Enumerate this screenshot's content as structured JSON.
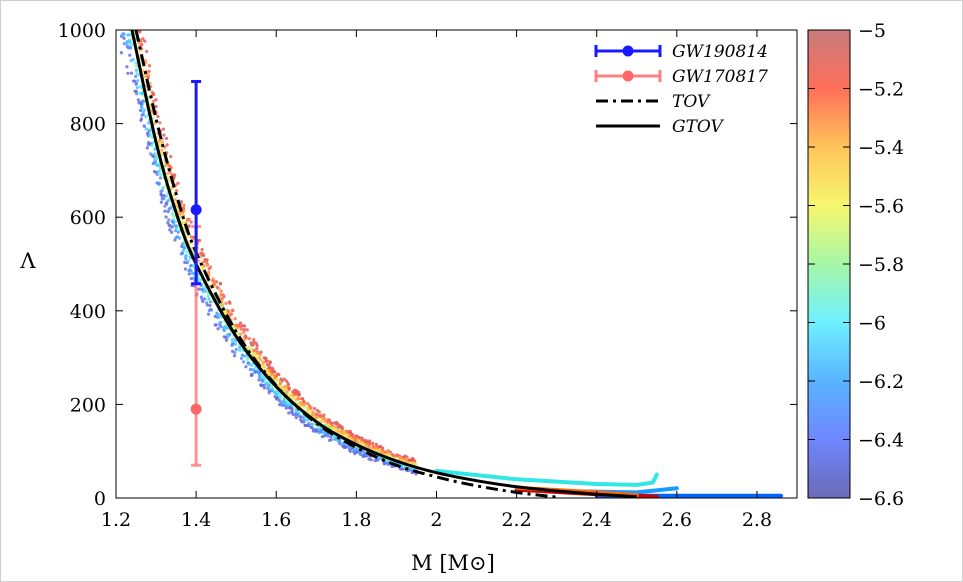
{
  "chart_data": {
    "type": "scatter",
    "xlabel": "M [M⊙]",
    "ylabel": "Λ",
    "xlim": [
      1.2,
      2.9
    ],
    "ylim": [
      0,
      1000
    ],
    "xticks": [
      "1.2",
      "1.4",
      "1.6",
      "1.8",
      "2",
      "2.2",
      "2.4",
      "2.6",
      "2.8"
    ],
    "yticks": [
      "0",
      "200",
      "400",
      "600",
      "800",
      "1000"
    ],
    "colorbar": {
      "min": -6.6,
      "max": -5,
      "ticks": [
        "−5",
        "−5.2",
        "−5.4",
        "−5.6",
        "−5.8",
        "−6",
        "−6.2",
        "−6.4",
        "−6.6"
      ]
    },
    "legend": [
      {
        "label": "GW190814",
        "style": "errorbar",
        "color": "#1a1aff"
      },
      {
        "label": "GW170817",
        "style": "errorbar",
        "color": "#ff7f7f"
      },
      {
        "label": "TOV",
        "style": "dashdot",
        "color": "#000000"
      },
      {
        "label": "GTOV",
        "style": "solid",
        "color": "#000000"
      }
    ],
    "error_points": [
      {
        "name": "GW190814",
        "x": 1.4,
        "y": 616,
        "ylow": 458,
        "yhigh": 890,
        "color": "#1a1aff"
      },
      {
        "name": "GW170817",
        "x": 1.4,
        "y": 190,
        "ylow": 70,
        "yhigh": 580,
        "color": "#ff7f7f"
      }
    ],
    "series": [
      {
        "name": "TOV",
        "x": [
          1.25,
          1.3,
          1.35,
          1.4,
          1.5,
          1.6,
          1.7,
          1.8,
          1.9,
          2.0,
          2.1,
          2.2,
          2.3
        ],
        "y": [
          1000,
          810,
          650,
          525,
          355,
          240,
          160,
          108,
          70,
          45,
          26,
          12,
          2
        ]
      },
      {
        "name": "GTOV",
        "x": [
          1.24,
          1.3,
          1.35,
          1.4,
          1.5,
          1.6,
          1.7,
          1.8,
          1.9,
          2.0,
          2.1,
          2.2,
          2.3,
          2.4,
          2.5
        ],
        "y": [
          1000,
          760,
          610,
          500,
          345,
          238,
          163,
          114,
          79,
          54,
          37,
          24,
          15,
          8,
          3
        ]
      }
    ],
    "band_tails": [
      {
        "color": "#33e6e6",
        "x": [
          2.0,
          2.2,
          2.4,
          2.5,
          2.54,
          2.55
        ],
        "y": [
          58,
          40,
          30,
          28,
          33,
          50
        ]
      },
      {
        "color": "#1a99ff",
        "x": [
          2.3,
          2.5,
          2.6
        ],
        "y": [
          15,
          12,
          21
        ]
      },
      {
        "color": "#0066ff",
        "x": [
          2.4,
          2.6,
          2.8,
          2.86
        ],
        "y": [
          5,
          5,
          5,
          5
        ]
      },
      {
        "color": "#cc0000",
        "x": [
          2.2,
          2.4,
          2.55
        ],
        "y": [
          18,
          8,
          3
        ]
      },
      {
        "color": "#ff6600",
        "x": [
          2.2,
          2.4,
          2.5
        ],
        "y": [
          22,
          12,
          6
        ]
      }
    ]
  }
}
